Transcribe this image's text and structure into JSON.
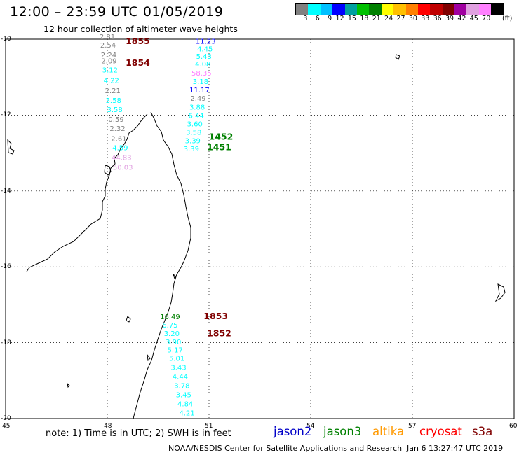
{
  "header": {
    "title": "12:00 – 23:59 UTC 01/05/2019",
    "subtitle": "12 hour collection of altimeter wave heights"
  },
  "legend": {
    "colors": [
      "#808080",
      "#00ffff",
      "#00c0ff",
      "#0000ff",
      "#00a0a0",
      "#00c000",
      "#008000",
      "#ffff00",
      "#ffc000",
      "#ff8000",
      "#ff0000",
      "#c00000",
      "#800000",
      "#a000a0",
      "#e0a0e0",
      "#ff80ff",
      "#000000"
    ],
    "labels": [
      "3",
      "6",
      "9",
      "12",
      "15",
      "18",
      "21",
      "24",
      "27",
      "30",
      "33",
      "36",
      "39",
      "42",
      "45",
      "70"
    ],
    "unit": "(ft)"
  },
  "axes": {
    "lat_labels": [
      "-10",
      "-12",
      "-14",
      "-16",
      "-18",
      "-20"
    ],
    "lon_labels": [
      "45",
      "48",
      "51",
      "54",
      "57",
      "60"
    ]
  },
  "map_data": {
    "lon_range": [
      45,
      60
    ],
    "lat_range": [
      -20,
      -10
    ],
    "tracks": [
      {
        "id": "track-west",
        "points": [
          {
            "lon": 48.0,
            "lat": -10.0,
            "v": "2.81",
            "c": "#808080"
          },
          {
            "lon": 48.02,
            "lat": -10.22,
            "v": "2.54",
            "c": "#808080"
          },
          {
            "lon": 48.04,
            "lat": -10.48,
            "v": "2.24",
            "c": "#808080"
          },
          {
            "lon": 48.05,
            "lat": -10.64,
            "v": "2.09",
            "c": "#808080"
          },
          {
            "lon": 48.08,
            "lat": -10.88,
            "v": "3.12",
            "c": "#00ffff"
          },
          {
            "lon": 48.12,
            "lat": -11.15,
            "v": "4.22",
            "c": "#00ffff"
          },
          {
            "lon": 48.16,
            "lat": -11.42,
            "v": "2.21",
            "c": "#808080"
          },
          {
            "lon": 48.18,
            "lat": -11.68,
            "v": "3.58",
            "c": "#00ffff"
          },
          {
            "lon": 48.22,
            "lat": -11.92,
            "v": "3.58",
            "c": "#00ffff"
          },
          {
            "lon": 48.26,
            "lat": -12.18,
            "v": "0.59",
            "c": "#808080"
          },
          {
            "lon": 48.3,
            "lat": -12.42,
            "v": "2.32",
            "c": "#808080"
          },
          {
            "lon": 48.34,
            "lat": -12.68,
            "v": "2.61",
            "c": "#808080"
          },
          {
            "lon": 48.38,
            "lat": -12.92,
            "v": "4.59",
            "c": "#00ffff"
          },
          {
            "lon": 48.42,
            "lat": -13.18,
            "v": "44.83",
            "c": "#e0a0e0"
          },
          {
            "lon": 48.46,
            "lat": -13.44,
            "v": "50.03",
            "c": "#e0a0e0"
          }
        ],
        "labels": [
          {
            "lon": 48.9,
            "lat": -10.13,
            "text": "1855"
          },
          {
            "lon": 48.9,
            "lat": -10.7,
            "text": "1854"
          }
        ],
        "label_color": "#800000"
      },
      {
        "id": "track-north-east",
        "points": [
          {
            "lon": 50.9,
            "lat": -10.12,
            "v": "11.23",
            "c": "#0000ff"
          },
          {
            "lon": 50.88,
            "lat": -10.32,
            "v": "4.45",
            "c": "#00ffff"
          },
          {
            "lon": 50.85,
            "lat": -10.52,
            "v": "5.43",
            "c": "#00ffff"
          },
          {
            "lon": 50.82,
            "lat": -10.72,
            "v": "4.08",
            "c": "#00ffff"
          },
          {
            "lon": 50.78,
            "lat": -10.96,
            "v": "58.35",
            "c": "#ff80ff"
          },
          {
            "lon": 50.75,
            "lat": -11.18,
            "v": "3.18",
            "c": "#00ffff"
          },
          {
            "lon": 50.72,
            "lat": -11.4,
            "v": "11.17",
            "c": "#0000ff"
          },
          {
            "lon": 50.68,
            "lat": -11.62,
            "v": "2.49",
            "c": "#808080"
          },
          {
            "lon": 50.65,
            "lat": -11.85,
            "v": "3.88",
            "c": "#00ffff"
          },
          {
            "lon": 50.62,
            "lat": -12.08,
            "v": "6.44",
            "c": "#00ffff"
          },
          {
            "lon": 50.58,
            "lat": -12.3,
            "v": "3.60",
            "c": "#00ffff"
          },
          {
            "lon": 50.55,
            "lat": -12.52,
            "v": "3.58",
            "c": "#00ffff"
          },
          {
            "lon": 50.52,
            "lat": -12.74,
            "v": "3.39",
            "c": "#00ffff"
          },
          {
            "lon": 50.48,
            "lat": -12.95,
            "v": "3.39",
            "c": "#00ffff"
          }
        ],
        "labels": [
          {
            "lon": 51.35,
            "lat": -12.65,
            "text": "1452"
          },
          {
            "lon": 51.3,
            "lat": -12.92,
            "text": "1451"
          }
        ],
        "label_color": "#008000"
      },
      {
        "id": "track-south",
        "points": [
          {
            "lon": 49.85,
            "lat": -17.38,
            "v": "16.49",
            "c": "#008000"
          },
          {
            "lon": 49.85,
            "lat": -17.6,
            "v": "6.75",
            "c": "#00ffff"
          },
          {
            "lon": 49.9,
            "lat": -17.82,
            "v": "3.20",
            "c": "#00ffff"
          },
          {
            "lon": 49.95,
            "lat": -18.04,
            "v": "3.90",
            "c": "#00ffff"
          },
          {
            "lon": 50.0,
            "lat": -18.26,
            "v": "5.17",
            "c": "#00ffff"
          },
          {
            "lon": 50.05,
            "lat": -18.48,
            "v": "5.01",
            "c": "#00ffff"
          },
          {
            "lon": 50.1,
            "lat": -18.72,
            "v": "3.43",
            "c": "#00ffff"
          },
          {
            "lon": 50.15,
            "lat": -18.96,
            "v": "4.44",
            "c": "#00ffff"
          },
          {
            "lon": 50.2,
            "lat": -19.2,
            "v": "3.78",
            "c": "#00ffff"
          },
          {
            "lon": 50.25,
            "lat": -19.44,
            "v": "3.45",
            "c": "#00ffff"
          },
          {
            "lon": 50.3,
            "lat": -19.68,
            "v": "4.84",
            "c": "#00ffff"
          },
          {
            "lon": 50.35,
            "lat": -19.92,
            "v": "4.21",
            "c": "#00ffff"
          }
        ],
        "labels": [
          {
            "lon": 51.2,
            "lat": -17.38,
            "text": "1853"
          },
          {
            "lon": 51.3,
            "lat": -17.83,
            "text": "1852"
          }
        ],
        "label_color": "#800000"
      }
    ]
  },
  "notes": {
    "note": "note:  1) Time is in UTC; 2) SWH is in feet",
    "satellites": [
      {
        "name": "jason2",
        "color": "#0000c8"
      },
      {
        "name": "jason3",
        "color": "#008000"
      },
      {
        "name": "altika",
        "color": "#ff9900"
      },
      {
        "name": "cryosat",
        "color": "#ff0000"
      },
      {
        "name": "s3a",
        "color": "#800000"
      }
    ],
    "footer": "NOAA/NESDIS Center for Satellite Applications and Research",
    "timestamp": "Jan  6 13:27:47 UTC 2019"
  }
}
